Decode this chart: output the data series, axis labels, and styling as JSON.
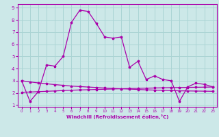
{
  "xlabel": "Windchill (Refroidissement éolien,°C)",
  "bg_color": "#cce8e8",
  "grid_color": "#aad4d4",
  "line_color": "#aa00aa",
  "line1_y": [
    3.0,
    1.3,
    2.1,
    4.3,
    4.2,
    5.0,
    7.8,
    8.8,
    8.7,
    7.7,
    6.6,
    6.5,
    6.6,
    4.1,
    4.6,
    3.1,
    3.4,
    3.1,
    3.0,
    1.3,
    2.5,
    2.8,
    2.7,
    2.5
  ],
  "line2_y": [
    3.0,
    2.9,
    2.82,
    2.75,
    2.68,
    2.62,
    2.56,
    2.52,
    2.48,
    2.44,
    2.4,
    2.37,
    2.34,
    2.31,
    2.28,
    2.25,
    2.23,
    2.21,
    2.19,
    2.17,
    2.16,
    2.15,
    2.14,
    2.13
  ],
  "line3_y": [
    2.05,
    2.07,
    2.1,
    2.13,
    2.16,
    2.19,
    2.22,
    2.24,
    2.26,
    2.28,
    2.3,
    2.32,
    2.34,
    2.36,
    2.37,
    2.39,
    2.4,
    2.42,
    2.43,
    2.44,
    2.45,
    2.46,
    2.47,
    2.48
  ],
  "x": [
    0,
    1,
    2,
    3,
    4,
    5,
    6,
    7,
    8,
    9,
    10,
    11,
    12,
    13,
    14,
    15,
    16,
    17,
    18,
    19,
    20,
    21,
    22,
    23
  ],
  "ylim": [
    0.85,
    9.3
  ],
  "xlim": [
    -0.5,
    23.5
  ],
  "yticks": [
    1,
    2,
    3,
    4,
    5,
    6,
    7,
    8,
    9
  ],
  "xticks": [
    0,
    1,
    2,
    3,
    4,
    5,
    6,
    7,
    8,
    9,
    10,
    11,
    12,
    13,
    14,
    15,
    16,
    17,
    18,
    19,
    20,
    21,
    22,
    23
  ]
}
